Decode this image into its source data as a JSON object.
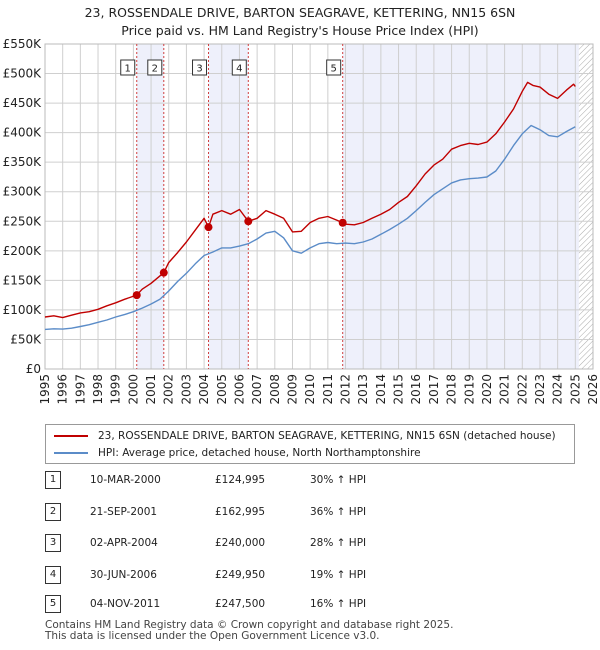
{
  "title_line1": "23, ROSSENDALE DRIVE, BARTON SEAGRAVE, KETTERING, NN15 6SN",
  "title_line2": "Price paid vs. HM Land Registry's House Price Index (HPI)",
  "colors": {
    "property": "#c00000",
    "hpi": "#5b8cc8",
    "band": "#eef0fb",
    "grid": "#cfcfcf"
  },
  "chart_data": {
    "type": "line",
    "xlim": [
      1995,
      2026
    ],
    "ylim": [
      0,
      550000
    ],
    "y_ticks": [
      0,
      50000,
      100000,
      150000,
      200000,
      250000,
      300000,
      350000,
      400000,
      450000,
      500000,
      550000
    ],
    "y_tick_labels": [
      "£0",
      "£50K",
      "£100K",
      "£150K",
      "£200K",
      "£250K",
      "£300K",
      "£350K",
      "£400K",
      "£450K",
      "£500K",
      "£550K"
    ],
    "x_ticks": [
      1995,
      1996,
      1997,
      1998,
      1999,
      2000,
      2001,
      2002,
      2003,
      2004,
      2005,
      2006,
      2007,
      2008,
      2009,
      2010,
      2011,
      2012,
      2013,
      2014,
      2015,
      2016,
      2017,
      2018,
      2019,
      2020,
      2021,
      2022,
      2023,
      2024,
      2025,
      2026
    ],
    "x_tick_labels": [
      "1995",
      "1996",
      "1997",
      "1998",
      "1999",
      "2000",
      "2001",
      "2002",
      "2003",
      "2004",
      "2005",
      "2006",
      "2007",
      "2008",
      "2009",
      "2010",
      "2011",
      "2012",
      "2013",
      "2014",
      "2015",
      "2016",
      "2017",
      "2018",
      "2019",
      "2020",
      "2021",
      "2022",
      "2023",
      "2024",
      "2025",
      "2026"
    ],
    "shaded_bands": [
      [
        2000.19,
        2001.72
      ],
      [
        2004.25,
        2006.5
      ],
      [
        2011.84,
        2025.2
      ]
    ],
    "hatch_from": 2025.2,
    "series": [
      {
        "name": "23, ROSSENDALE DRIVE, BARTON SEAGRAVE, KETTERING, NN15 6SN (detached house)",
        "x": [
          1995.0,
          1995.5,
          1996.0,
          1996.5,
          1997.0,
          1997.5,
          1998.0,
          1998.5,
          1999.0,
          1999.5,
          2000.19,
          2000.5,
          2001.0,
          2001.72,
          2002.0,
          2002.5,
          2003.0,
          2003.5,
          2004.0,
          2004.25,
          2004.5,
          2005.0,
          2005.5,
          2006.0,
          2006.5,
          2007.0,
          2007.5,
          2008.0,
          2008.5,
          2009.0,
          2009.5,
          2010.0,
          2010.5,
          2011.0,
          2011.5,
          2011.84,
          2012.0,
          2012.5,
          2013.0,
          2013.5,
          2014.0,
          2014.5,
          2015.0,
          2015.5,
          2016.0,
          2016.5,
          2017.0,
          2017.5,
          2018.0,
          2018.5,
          2019.0,
          2019.5,
          2020.0,
          2020.5,
          2021.0,
          2021.5,
          2022.0,
          2022.3,
          2022.6,
          2023.0,
          2023.5,
          2024.0,
          2024.5,
          2024.9,
          2025.0
        ],
        "values": [
          88000,
          90000,
          87000,
          91000,
          95000,
          97000,
          101000,
          107000,
          112000,
          118000,
          124995,
          135000,
          145000,
          162995,
          180000,
          197000,
          215000,
          235000,
          255000,
          240000,
          262000,
          268000,
          262000,
          270000,
          249950,
          255000,
          268000,
          262000,
          255000,
          232000,
          233000,
          248000,
          255000,
          258000,
          252000,
          247500,
          245000,
          244000,
          248000,
          255000,
          262000,
          270000,
          282000,
          292000,
          310000,
          330000,
          345000,
          355000,
          372000,
          378000,
          382000,
          380000,
          384000,
          398000,
          418000,
          440000,
          470000,
          485000,
          480000,
          477000,
          465000,
          458000,
          472000,
          482000,
          478000
        ]
      },
      {
        "name": "HPI: Average price, detached house, North Northamptonshire",
        "x": [
          1995.0,
          1995.5,
          1996.0,
          1996.5,
          1997.0,
          1997.5,
          1998.0,
          1998.5,
          1999.0,
          1999.5,
          2000.0,
          2000.5,
          2001.0,
          2001.5,
          2002.0,
          2002.5,
          2003.0,
          2003.5,
          2004.0,
          2004.5,
          2005.0,
          2005.5,
          2006.0,
          2006.5,
          2007.0,
          2007.5,
          2008.0,
          2008.5,
          2009.0,
          2009.5,
          2010.0,
          2010.5,
          2011.0,
          2011.5,
          2012.0,
          2012.5,
          2013.0,
          2013.5,
          2014.0,
          2014.5,
          2015.0,
          2015.5,
          2016.0,
          2016.5,
          2017.0,
          2017.5,
          2018.0,
          2018.5,
          2019.0,
          2019.5,
          2020.0,
          2020.5,
          2021.0,
          2021.5,
          2022.0,
          2022.5,
          2023.0,
          2023.5,
          2024.0,
          2024.5,
          2025.0
        ],
        "values": [
          67000,
          68000,
          67500,
          69000,
          72000,
          75000,
          79000,
          83000,
          88000,
          92000,
          97000,
          103000,
          110000,
          118000,
          132000,
          148000,
          162000,
          178000,
          192000,
          198000,
          205000,
          205000,
          208000,
          212000,
          220000,
          230000,
          233000,
          222000,
          200000,
          196000,
          205000,
          212000,
          214000,
          212000,
          213000,
          212000,
          215000,
          220000,
          228000,
          236000,
          245000,
          255000,
          268000,
          282000,
          295000,
          305000,
          315000,
          320000,
          322000,
          323000,
          325000,
          335000,
          355000,
          378000,
          398000,
          412000,
          405000,
          395000,
          393000,
          402000,
          410000
        ]
      }
    ],
    "sale_points": [
      {
        "label": "1",
        "x": 2000.19,
        "value": 124995
      },
      {
        "label": "2",
        "x": 2001.72,
        "value": 162995
      },
      {
        "label": "3",
        "x": 2004.25,
        "value": 240000
      },
      {
        "label": "4",
        "x": 2006.5,
        "value": 249950
      },
      {
        "label": "5",
        "x": 2011.84,
        "value": 247500
      }
    ]
  },
  "legend": {
    "property_label": "23, ROSSENDALE DRIVE, BARTON SEAGRAVE, KETTERING, NN15 6SN (detached house)",
    "hpi_label": "HPI: Average price, detached house, North Northamptonshire"
  },
  "sales": [
    {
      "num": "1",
      "date": "10-MAR-2000",
      "price": "£124,995",
      "hpi": "30% ↑ HPI"
    },
    {
      "num": "2",
      "date": "21-SEP-2001",
      "price": "£162,995",
      "hpi": "36% ↑ HPI"
    },
    {
      "num": "3",
      "date": "02-APR-2004",
      "price": "£240,000",
      "hpi": "28% ↑ HPI"
    },
    {
      "num": "4",
      "date": "30-JUN-2006",
      "price": "£249,950",
      "hpi": "19% ↑ HPI"
    },
    {
      "num": "5",
      "date": "04-NOV-2011",
      "price": "£247,500",
      "hpi": "16% ↑ HPI"
    }
  ],
  "footer_line1": "Contains HM Land Registry data © Crown copyright and database right 2025.",
  "footer_line2": "This data is licensed under the Open Government Licence v3.0."
}
